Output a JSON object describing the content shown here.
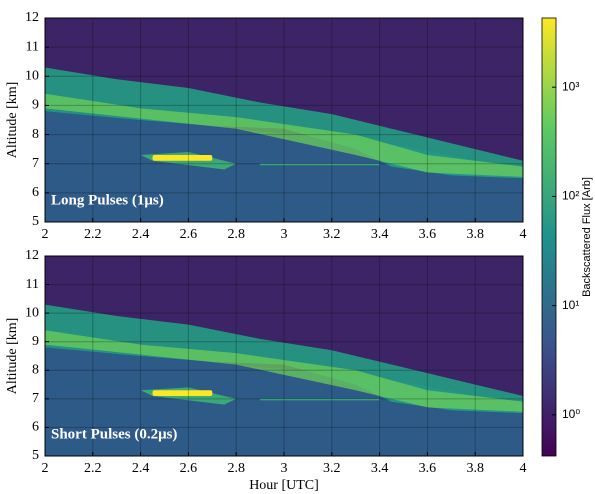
{
  "chart_data": [
    {
      "type": "heatmap",
      "annotation": "Long Pulses (1μs)",
      "ylabel": "Altitude [km]",
      "xlim": [
        2,
        4
      ],
      "xticks": [
        2,
        2.2,
        2.4,
        2.6,
        2.8,
        3,
        3.2,
        3.4,
        3.6,
        3.8,
        4
      ],
      "ylim": [
        5,
        12
      ],
      "yticks": [
        5,
        6,
        7,
        8,
        9,
        10,
        11,
        12
      ],
      "grid": true
    },
    {
      "type": "heatmap",
      "annotation": "Short Pulses (0.2μs)",
      "ylabel": "Altitude [km]",
      "xlabel": "Hour [UTC]",
      "xlim": [
        2,
        4
      ],
      "xticks": [
        2,
        2.2,
        2.4,
        2.6,
        2.8,
        3,
        3.2,
        3.4,
        3.6,
        3.8,
        4
      ],
      "ylim": [
        5,
        12
      ],
      "yticks": [
        5,
        6,
        7,
        8,
        9,
        10,
        11,
        12
      ],
      "grid": true
    }
  ],
  "colorbar": {
    "label": "Backscattered Flux [Arb]",
    "log": true,
    "lim": [
      0.42,
      4300
    ],
    "ticks": [
      {
        "value": 1,
        "label": "10⁰"
      },
      {
        "value": 10,
        "label": "10¹"
      },
      {
        "value": 100,
        "label": "10²"
      },
      {
        "value": 1000,
        "label": "10³"
      }
    ],
    "colormap": [
      "#440154",
      "#3b528b",
      "#21918c",
      "#5ec962",
      "#fde725"
    ]
  }
}
